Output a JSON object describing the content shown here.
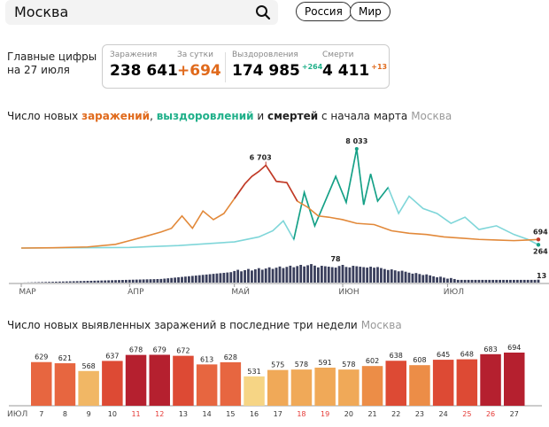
{
  "search": {
    "city": "Москва"
  },
  "region_buttons": [
    "Россия",
    "Мир"
  ],
  "summary": {
    "label_line1": "Главные цифры",
    "label_line2": "на 27 июля",
    "stats": [
      {
        "label": "Заражения",
        "value": "238 641",
        "delta": ""
      },
      {
        "label": "За сутки",
        "value": "+694",
        "delta": ""
      },
      {
        "label": "Выздоровления",
        "value": "174 985",
        "delta": "+264"
      },
      {
        "label": "Смерти",
        "value": "4 411",
        "delta": "+13"
      }
    ]
  },
  "colors": {
    "infections": "#e2893a",
    "infections_dark": "#c0392b",
    "recoveries": "#7fd6d9",
    "recoveries_dark": "#16a085",
    "deaths": "#3a3f5c",
    "orange_text": "#e06a1c",
    "green_text": "#20b08a"
  },
  "main_chart": {
    "title_part1": "Число новых ",
    "title_infections": "заражений",
    "title_sep": ", ",
    "title_recoveries": "выздоровлений",
    "title_and": " и ",
    "title_deaths": "смертей",
    "title_part2": " с начала марта",
    "title_city": "Москва",
    "month_labels": [
      "МАР",
      "АПР",
      "МАЙ",
      "ИЮН",
      "ИЮЛ"
    ],
    "annotations": [
      "6 703",
      "8 033",
      "694",
      "264",
      "78",
      "13"
    ]
  },
  "bar_chart": {
    "title": "Число новых выявленных заражений в последние три недели",
    "title_city": "Москва",
    "month_label": "ИЮЛ"
  },
  "chart_data": [
    {
      "type": "line",
      "title": "Число новых заражений, выздоровлений и смертей с начала марта",
      "x_range": [
        "2020-03-01",
        "2020-07-27"
      ],
      "x_ticks": [
        "МАР",
        "АПР",
        "МАЙ",
        "ИЮН",
        "ИЮЛ"
      ],
      "series": [
        {
          "name": "заражений",
          "x": [
            "03-01",
            "03-10",
            "03-20",
            "03-28",
            "04-01",
            "04-05",
            "04-10",
            "04-13",
            "04-16",
            "04-19",
            "04-22",
            "04-25",
            "04-28",
            "05-01",
            "05-04",
            "05-06",
            "05-08",
            "05-10",
            "05-13",
            "05-16",
            "05-19",
            "05-22",
            "05-25",
            "05-28",
            "06-01",
            "06-05",
            "06-10",
            "06-15",
            "06-20",
            "06-25",
            "06-30",
            "07-05",
            "07-10",
            "07-15",
            "07-20",
            "07-24",
            "07-27"
          ],
          "values": [
            0,
            20,
            90,
            300,
            600,
            900,
            1300,
            1600,
            2600,
            1600,
            3000,
            2300,
            2800,
            4000,
            5200,
            5800,
            6200,
            6703,
            5400,
            5300,
            3800,
            3300,
            2600,
            2500,
            2300,
            2000,
            1900,
            1400,
            1200,
            1100,
            900,
            800,
            700,
            650,
            600,
            650,
            694
          ]
        },
        {
          "name": "выздоровлений",
          "x": [
            "03-01",
            "04-01",
            "04-15",
            "05-01",
            "05-08",
            "05-12",
            "05-15",
            "05-18",
            "05-21",
            "05-24",
            "05-27",
            "05-30",
            "06-02",
            "06-05",
            "06-07",
            "06-09",
            "06-11",
            "06-14",
            "06-17",
            "06-20",
            "06-24",
            "06-28",
            "07-02",
            "07-06",
            "07-10",
            "07-15",
            "07-20",
            "07-24",
            "07-27"
          ],
          "values": [
            0,
            50,
            200,
            500,
            900,
            1400,
            2200,
            700,
            4500,
            1800,
            3800,
            5800,
            3700,
            8033,
            3500,
            6000,
            3800,
            4900,
            2800,
            4200,
            3200,
            2800,
            2000,
            2500,
            1500,
            1800,
            1100,
            700,
            264
          ]
        },
        {
          "name": "смертей",
          "peak": 78,
          "last": 13
        }
      ]
    },
    {
      "type": "bar",
      "title": "Число новых выявленных заражений в последние три недели",
      "xlabel": "ИЮЛ",
      "categories": [
        "7",
        "8",
        "9",
        "10",
        "11",
        "12",
        "13",
        "14",
        "15",
        "16",
        "17",
        "18",
        "19",
        "20",
        "21",
        "22",
        "23",
        "24",
        "25",
        "26",
        "27"
      ],
      "values": [
        629,
        621,
        568,
        637,
        678,
        679,
        672,
        613,
        628,
        531,
        575,
        578,
        591,
        578,
        602,
        638,
        608,
        645,
        648,
        683,
        694
      ],
      "weekend_categories": [
        "11",
        "12",
        "18",
        "19",
        "25",
        "26"
      ]
    }
  ]
}
